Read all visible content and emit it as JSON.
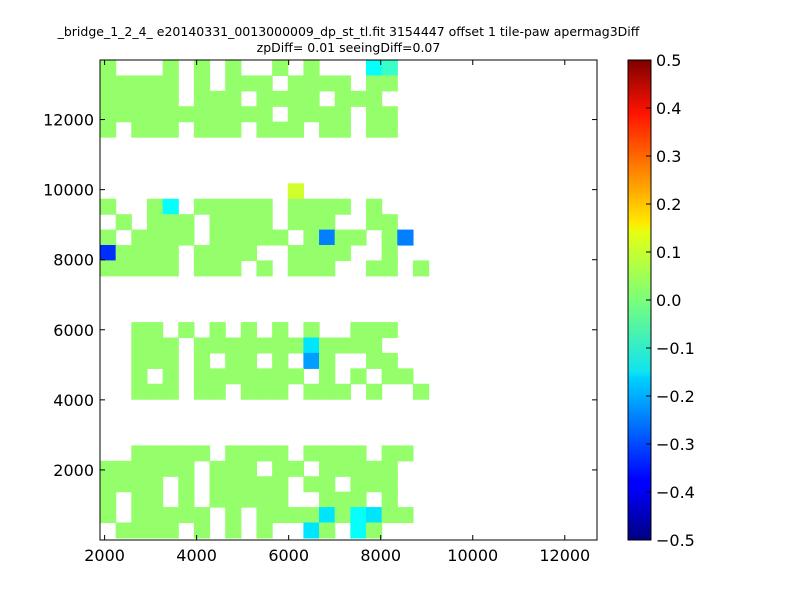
{
  "chart_data": {
    "type": "heatmap",
    "title_line1": "_bridge_1_2_4_ e20140331_0013000009_dp_st_tl.fit 3154447 offset 1 tile-paw apermag3Diff",
    "title_line2": "zpDiff= 0.01 seeingDiff=0.07",
    "xlim": [
      1900,
      12700
    ],
    "ylim": [
      0,
      13700
    ],
    "x_ticks": [
      2000,
      4000,
      6000,
      8000,
      10000,
      12000
    ],
    "y_ticks": [
      2000,
      4000,
      6000,
      8000,
      10000,
      12000
    ],
    "colorbar": {
      "min": -0.5,
      "max": 0.5,
      "colormap": "jet",
      "ticks": [
        0.5,
        0.4,
        0.3,
        0.2,
        0.1,
        0.0,
        -0.1,
        -0.2,
        -0.3,
        -0.4,
        -0.5
      ],
      "tick_labels": [
        "0.5",
        "0.4",
        "0.3",
        "0.2",
        "0.1",
        "0.0",
        "−0.1",
        "−0.2",
        "−0.3",
        "−0.4",
        "−0.5"
      ]
    },
    "cell_width": 340,
    "cell_height": 440,
    "background_value": 0.02,
    "cells_note": "grid of occupied cells: rows listed top (row 0 at y≈13480) to bottom; '#' = value ~0.02, other symbols are special values",
    "x0": 1900,
    "y_top": 13700,
    "rows": [
      "#...#.#.#..#.#...TS..",
      "#####.#.###.####.##..",
      "#####.###.####.###...",
      "###########.####.##..",
      "#.###.###.###.##.##..",
      "....................",
      "....................",
      "....................",
      "............Y.......",
      "#..#T.#####.####.#...",
      ".#.###.####.###..##..",
      "#.####.#####.#B##.#B.",
      "D####.####..####..#..",
      "#####.###.#.###..##.#",
      "....................",
      "....................",
      "....................",
      "..##.#.#.#.#.#..###..",
      "..###.#######C####...",
      "..###.#.##.#.A#..##..",
      "..#.#.#######.#.#.##.",
      "..###.##.###.###.#..#",
      "....................",
      "....................",
      "....................",
      "..#####.####.####.##.",
      "######.###.##.#####..",
      "####.#.#####.##.###..",
      "#.##.#.#####..###.#..",
      "#.#####.#.####C#TC##.",
      ".####.#.#.#..C#.T#..."
    ],
    "special_values": {
      "#": 0.02,
      "S": -0.07,
      "T": -0.12,
      "Y": 0.08,
      "B": -0.25,
      "D": -0.33,
      "A": -0.22,
      "C": -0.15
    }
  }
}
